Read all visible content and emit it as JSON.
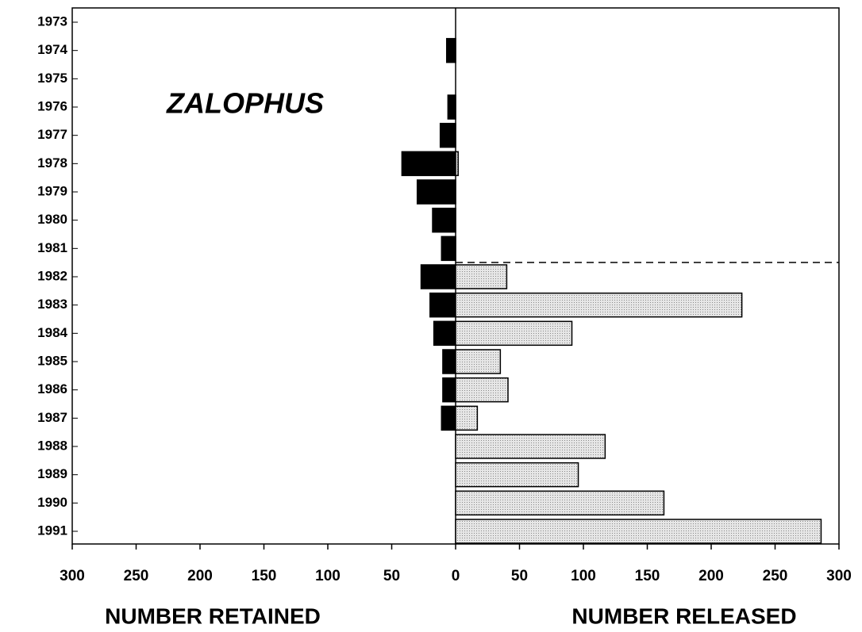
{
  "chart_data": {
    "type": "butterfly-bar",
    "title": "ZALOPHUS",
    "x_left_label": "NUMBER RETAINED",
    "x_right_label": "NUMBER RELEASED",
    "categories": [
      "1973",
      "1974",
      "1975",
      "1976",
      "1977",
      "1978",
      "1979",
      "1980",
      "1981",
      "1982",
      "1983",
      "1984",
      "1985",
      "1986",
      "1987",
      "1988",
      "1989",
      "1990",
      "1991"
    ],
    "series": [
      {
        "name": "Retained",
        "color": "#000000",
        "axis": "x_left",
        "values": [
          0,
          7,
          0,
          6,
          12,
          42,
          30,
          18,
          11,
          27,
          20,
          17,
          10,
          10,
          11,
          0,
          0,
          0,
          0
        ]
      },
      {
        "name": "Released",
        "color": "#dcdcdc",
        "axis": "x_right",
        "values": [
          0,
          0,
          0,
          0,
          0,
          2,
          0,
          0,
          0,
          40,
          224,
          91,
          35,
          41,
          17,
          117,
          96,
          163,
          286
        ]
      }
    ],
    "x_left_lim": [
      300,
      0
    ],
    "x_left_ticks": [
      300,
      250,
      200,
      150,
      100,
      50
    ],
    "x_right_lim": [
      0,
      300
    ],
    "x_right_ticks": [
      0,
      50,
      100,
      150,
      200,
      250,
      300
    ]
  }
}
